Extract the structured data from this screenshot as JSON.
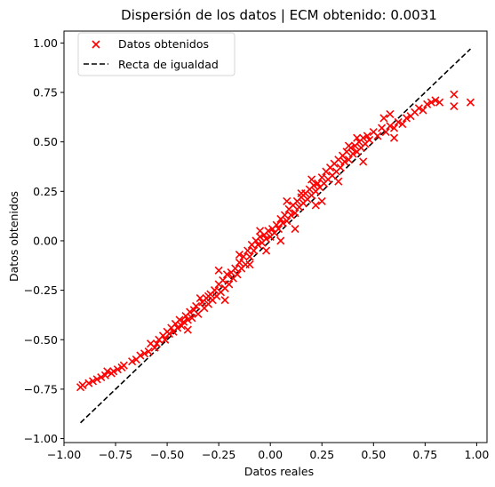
{
  "chart_data": {
    "type": "scatter",
    "title": "Dispersión de los datos | ECM obtenido: 0.0031",
    "xlabel": "Datos reales",
    "ylabel": "Datos obtenidos",
    "xlim": [
      -1.0,
      1.05
    ],
    "ylim": [
      -1.02,
      1.06
    ],
    "xticks": [
      -1.0,
      -0.75,
      -0.5,
      -0.25,
      0.0,
      0.25,
      0.5,
      0.75,
      1.0
    ],
    "xtick_labels": [
      "−1.00",
      "−0.75",
      "−0.50",
      "−0.25",
      "0.00",
      "0.25",
      "0.50",
      "0.75",
      "1.00"
    ],
    "yticks": [
      -1.0,
      -0.75,
      -0.5,
      -0.25,
      0.0,
      0.25,
      0.5,
      0.75,
      1.0
    ],
    "ytick_labels": [
      "−1.00",
      "−0.75",
      "−0.50",
      "−0.25",
      "0.00",
      "0.25",
      "0.50",
      "0.75",
      "1.00"
    ],
    "grid": false,
    "legend_position": "top-left",
    "series": [
      {
        "name": "Datos obtenidos",
        "marker": "x",
        "color": "#ff0000",
        "points": [
          [
            -0.92,
            -0.74
          ],
          [
            -0.91,
            -0.73
          ],
          [
            -0.88,
            -0.72
          ],
          [
            -0.86,
            -0.71
          ],
          [
            -0.84,
            -0.7
          ],
          [
            -0.82,
            -0.69
          ],
          [
            -0.8,
            -0.68
          ],
          [
            -0.79,
            -0.66
          ],
          [
            -0.77,
            -0.67
          ],
          [
            -0.76,
            -0.66
          ],
          [
            -0.74,
            -0.65
          ],
          [
            -0.72,
            -0.64
          ],
          [
            -0.71,
            -0.63
          ],
          [
            -0.67,
            -0.61
          ],
          [
            -0.65,
            -0.6
          ],
          [
            -0.63,
            -0.58
          ],
          [
            -0.61,
            -0.57
          ],
          [
            -0.59,
            -0.56
          ],
          [
            -0.58,
            -0.52
          ],
          [
            -0.56,
            -0.54
          ],
          [
            -0.55,
            -0.52
          ],
          [
            -0.54,
            -0.5
          ],
          [
            -0.52,
            -0.48
          ],
          [
            -0.51,
            -0.5
          ],
          [
            -0.5,
            -0.46
          ],
          [
            -0.49,
            -0.47
          ],
          [
            -0.48,
            -0.44
          ],
          [
            -0.47,
            -0.46
          ],
          [
            -0.46,
            -0.42
          ],
          [
            -0.45,
            -0.44
          ],
          [
            -0.44,
            -0.4
          ],
          [
            -0.43,
            -0.43
          ],
          [
            -0.42,
            -0.41
          ],
          [
            -0.41,
            -0.38
          ],
          [
            -0.4,
            -0.4
          ],
          [
            -0.39,
            -0.36
          ],
          [
            -0.38,
            -0.39
          ],
          [
            -0.37,
            -0.35
          ],
          [
            -0.36,
            -0.33
          ],
          [
            -0.35,
            -0.37
          ],
          [
            -0.34,
            -0.29
          ],
          [
            -0.33,
            -0.31
          ],
          [
            -0.32,
            -0.34
          ],
          [
            -0.31,
            -0.29
          ],
          [
            -0.3,
            -0.32
          ],
          [
            -0.29,
            -0.27
          ],
          [
            -0.28,
            -0.3
          ],
          [
            -0.27,
            -0.25
          ],
          [
            -0.26,
            -0.28
          ],
          [
            -0.25,
            -0.22
          ],
          [
            -0.24,
            -0.26
          ],
          [
            -0.23,
            -0.2
          ],
          [
            -0.22,
            -0.24
          ],
          [
            -0.21,
            -0.17
          ],
          [
            -0.2,
            -0.22
          ],
          [
            -0.19,
            -0.16
          ],
          [
            -0.18,
            -0.19
          ],
          [
            -0.17,
            -0.14
          ],
          [
            -0.16,
            -0.17
          ],
          [
            -0.15,
            -0.11
          ],
          [
            -0.14,
            -0.14
          ],
          [
            -0.13,
            -0.08
          ],
          [
            -0.12,
            -0.12
          ],
          [
            -0.11,
            -0.05
          ],
          [
            -0.1,
            -0.08
          ],
          [
            -0.09,
            -0.02
          ],
          [
            -0.08,
            -0.05
          ],
          [
            -0.07,
            0.0
          ],
          [
            -0.06,
            -0.02
          ],
          [
            -0.05,
            0.02
          ],
          [
            -0.04,
            -0.01
          ],
          [
            -0.03,
            0.03
          ],
          [
            -0.02,
            0.01
          ],
          [
            -0.01,
            0.05
          ],
          [
            0.0,
            0.02
          ],
          [
            0.01,
            0.06
          ],
          [
            0.02,
            0.04
          ],
          [
            0.03,
            0.08
          ],
          [
            0.04,
            0.06
          ],
          [
            0.05,
            0.11
          ],
          [
            0.06,
            0.09
          ],
          [
            0.07,
            0.13
          ],
          [
            0.08,
            0.1
          ],
          [
            0.09,
            0.16
          ],
          [
            0.1,
            0.13
          ],
          [
            0.11,
            0.18
          ],
          [
            0.12,
            0.14
          ],
          [
            0.13,
            0.2
          ],
          [
            0.14,
            0.17
          ],
          [
            0.15,
            0.22
          ],
          [
            0.16,
            0.19
          ],
          [
            0.17,
            0.24
          ],
          [
            0.18,
            0.21
          ],
          [
            0.19,
            0.26
          ],
          [
            0.2,
            0.23
          ],
          [
            0.21,
            0.28
          ],
          [
            0.22,
            0.25
          ],
          [
            0.23,
            0.29
          ],
          [
            0.24,
            0.27
          ],
          [
            0.25,
            0.32
          ],
          [
            0.26,
            0.29
          ],
          [
            0.27,
            0.35
          ],
          [
            0.28,
            0.31
          ],
          [
            0.29,
            0.37
          ],
          [
            0.3,
            0.33
          ],
          [
            0.31,
            0.39
          ],
          [
            0.32,
            0.35
          ],
          [
            0.33,
            0.41
          ],
          [
            0.34,
            0.37
          ],
          [
            0.35,
            0.43
          ],
          [
            0.36,
            0.4
          ],
          [
            0.37,
            0.45
          ],
          [
            0.38,
            0.41
          ],
          [
            0.39,
            0.47
          ],
          [
            0.4,
            0.44
          ],
          [
            0.41,
            0.48
          ],
          [
            0.42,
            0.45
          ],
          [
            0.43,
            0.5
          ],
          [
            0.44,
            0.47
          ],
          [
            0.45,
            0.52
          ],
          [
            0.46,
            0.49
          ],
          [
            0.47,
            0.53
          ],
          [
            0.48,
            0.51
          ],
          [
            0.5,
            0.55
          ],
          [
            0.52,
            0.53
          ],
          [
            0.54,
            0.57
          ],
          [
            0.56,
            0.55
          ],
          [
            0.58,
            0.58
          ],
          [
            0.6,
            0.57
          ],
          [
            0.62,
            0.6
          ],
          [
            0.64,
            0.59
          ],
          [
            0.66,
            0.62
          ],
          [
            0.68,
            0.63
          ],
          [
            0.7,
            0.65
          ],
          [
            0.72,
            0.67
          ],
          [
            0.74,
            0.66
          ],
          [
            0.76,
            0.69
          ],
          [
            0.78,
            0.7
          ],
          [
            0.8,
            0.71
          ],
          [
            0.82,
            0.7
          ],
          [
            0.89,
            0.74
          ],
          [
            0.89,
            0.68
          ],
          [
            0.97,
            0.7
          ],
          [
            -0.1,
            -0.12
          ],
          [
            0.05,
            0.0
          ],
          [
            0.15,
            0.24
          ],
          [
            0.2,
            0.31
          ],
          [
            -0.22,
            -0.3
          ],
          [
            -0.3,
            -0.28
          ],
          [
            0.33,
            0.3
          ],
          [
            0.42,
            0.52
          ],
          [
            -0.4,
            -0.45
          ],
          [
            0.55,
            0.62
          ],
          [
            0.58,
            0.64
          ],
          [
            0.6,
            0.52
          ],
          [
            0.22,
            0.18
          ],
          [
            0.08,
            0.2
          ],
          [
            -0.02,
            -0.05
          ],
          [
            0.12,
            0.06
          ],
          [
            0.25,
            0.2
          ],
          [
            -0.15,
            -0.07
          ],
          [
            -0.25,
            -0.15
          ],
          [
            0.38,
            0.48
          ],
          [
            0.45,
            0.4
          ],
          [
            -0.05,
            0.05
          ]
        ]
      }
    ],
    "reference_line": {
      "name": "Recta de igualdad",
      "style": "dashed",
      "color": "#000000",
      "from": [
        -0.92,
        -0.92
      ],
      "to": [
        0.97,
        0.97
      ]
    }
  }
}
